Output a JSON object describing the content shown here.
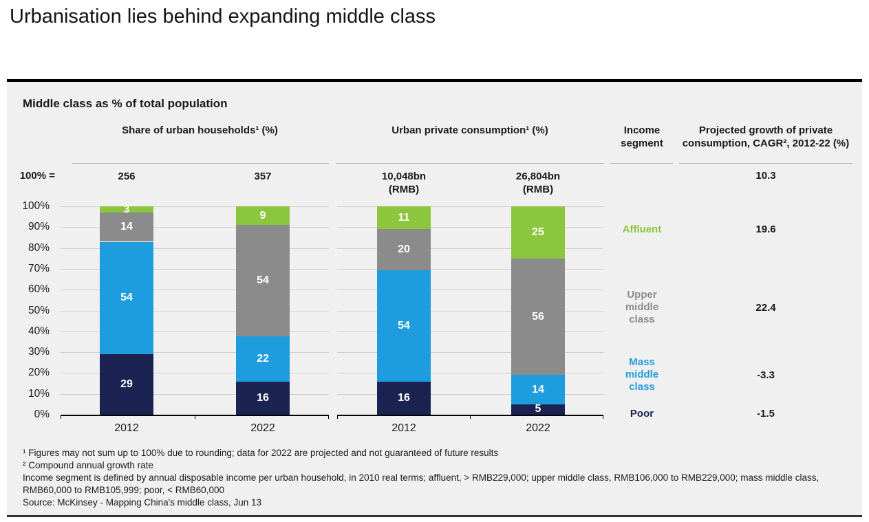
{
  "page": {
    "title": "Urbanisation lies behind expanding middle class"
  },
  "panel": {
    "heading": "Middle class as % of total population",
    "total_row_label": "100% =",
    "footnotes": [
      "¹ Figures may not sum up to 100% due to rounding; data for 2022 are projected and not guaranteed of future results",
      "² Compound annual growth rate",
      "Income segment is defined by annual disposable income per urban household, in 2010 real terms; affluent, > RMB229,000; upper middle class, RMB106,000 to RMB229,000; mass middle class, RMB60,000 to RMB105,999; poor, < RMB60,000",
      "Source: McKinsey - Mapping China's middle class, Jun 13"
    ]
  },
  "colors": {
    "poor": "#1a2351",
    "mass_middle_class": "#1e9dde",
    "upper_middle_class": "#8b8b8b",
    "affluent": "#8cc63e",
    "panel_bg": "#f0f0f0",
    "gridline": "#cfcfcf"
  },
  "chart_data": [
    {
      "type": "bar",
      "stacked": true,
      "title": "Share of urban households¹ (%)",
      "categories": [
        "2012",
        "2022"
      ],
      "totals": [
        "256",
        "357"
      ],
      "series": [
        {
          "name": "Poor",
          "color": "#1a2351",
          "values": [
            29,
            16
          ]
        },
        {
          "name": "Mass middle class",
          "color": "#1e9dde",
          "values": [
            54,
            22
          ]
        },
        {
          "name": "Upper middle class",
          "color": "#8b8b8b",
          "values": [
            14,
            54
          ]
        },
        {
          "name": "Affluent",
          "color": "#8cc63e",
          "values": [
            3,
            9
          ]
        }
      ],
      "xlabel": "",
      "ylabel": "",
      "ylim": [
        0,
        100
      ],
      "grid": true,
      "yticks": [
        "100%",
        "90%",
        "80%",
        "70%",
        "60%",
        "50%",
        "40%",
        "30%",
        "20%",
        "10%",
        "0%"
      ]
    },
    {
      "type": "bar",
      "stacked": true,
      "title": "Urban private consumption¹ (%)",
      "categories": [
        "2012",
        "2022"
      ],
      "totals": [
        "10,048bn\n(RMB)",
        "26,804bn\n(RMB)"
      ],
      "series": [
        {
          "name": "Poor",
          "color": "#1a2351",
          "values": [
            16,
            5
          ]
        },
        {
          "name": "Mass middle class",
          "color": "#1e9dde",
          "values": [
            54,
            14
          ]
        },
        {
          "name": "Upper middle class",
          "color": "#8b8b8b",
          "values": [
            20,
            56
          ]
        },
        {
          "name": "Affluent",
          "color": "#8cc63e",
          "values": [
            11,
            25
          ]
        }
      ],
      "xlabel": "",
      "ylabel": "",
      "ylim": [
        0,
        100
      ],
      "grid": true
    },
    {
      "type": "table",
      "title": "Income\nsegment",
      "value_title": "Projected growth of private consumption, CAGR², 2012-22 (%)",
      "overall_value": "10.3",
      "rows": [
        {
          "segment": "Affluent",
          "display": "Affluent",
          "color": "#8cc63e",
          "value": "19.6"
        },
        {
          "segment": "Upper middle class",
          "display": "Upper\nmiddle\nclass",
          "color": "#8b8b8b",
          "value": "22.4"
        },
        {
          "segment": "Mass middle class",
          "display": "Mass\nmiddle\nclass",
          "color": "#1e9dde",
          "value": "-3.3"
        },
        {
          "segment": "Poor",
          "display": "Poor",
          "color": "#1a2351",
          "value": "-1.5"
        }
      ]
    }
  ]
}
